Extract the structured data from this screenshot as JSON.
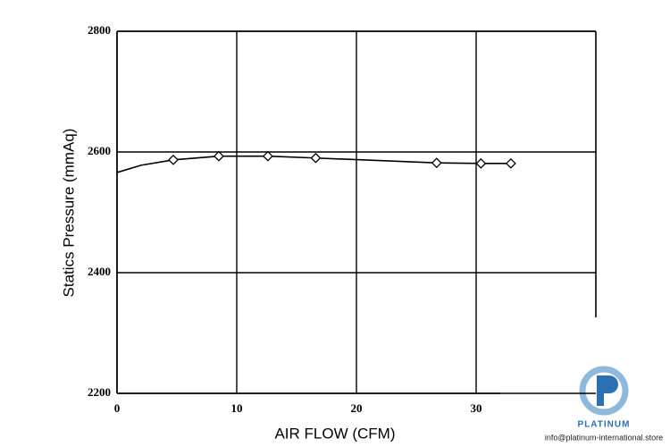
{
  "chart_data": {
    "type": "line",
    "x_label": "AIR FLOW (CFM)",
    "y_label": "Statics Pressure (mmAq)",
    "xlim": [
      0,
      40
    ],
    "xticks": [
      0,
      10,
      20,
      30
    ],
    "ylim": [
      2200,
      2800
    ],
    "yticks": [
      2200,
      2400,
      2600,
      2800
    ],
    "grid": true,
    "series": [
      {
        "color": "#000000",
        "marker": false,
        "x": [
          0,
          2,
          4.7,
          8.5,
          12.6,
          16.6,
          26.7,
          30.4,
          32.9
        ],
        "values": [
          2566,
          2578,
          2587,
          2593,
          2593,
          2590,
          2582,
          2581,
          2581
        ]
      },
      {
        "color": "#000000",
        "marker": true,
        "x": [
          4.7,
          8.5,
          12.6,
          16.6,
          26.7,
          30.4,
          32.9
        ],
        "values": [
          2587,
          2593,
          2593,
          2590,
          2582,
          2581,
          2581
        ]
      }
    ]
  },
  "watermark": {
    "brand": "PLATINUM",
    "email": "info@platinum-international.store"
  }
}
